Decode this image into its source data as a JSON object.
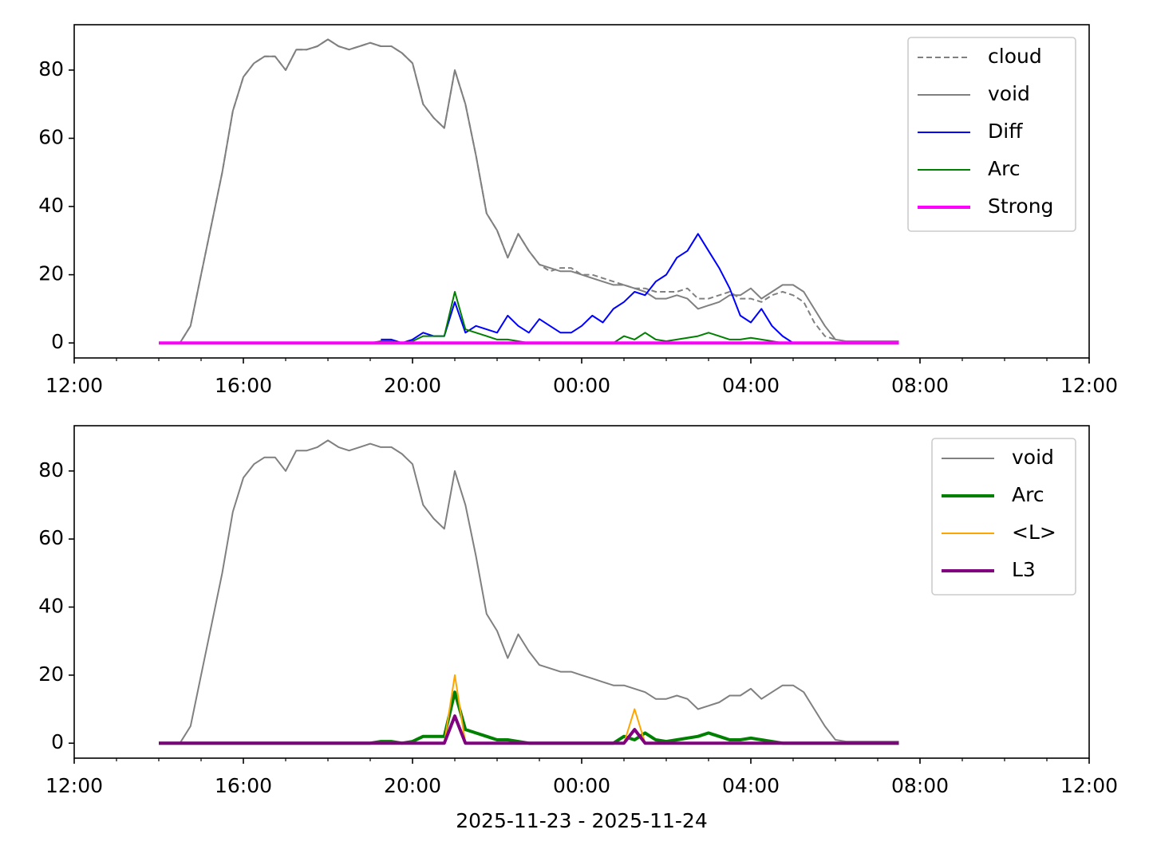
{
  "chart_data": [
    {
      "type": "line",
      "x": [
        14,
        14.25,
        14.5,
        14.75,
        15,
        15.25,
        15.5,
        15.75,
        16,
        16.25,
        16.5,
        16.75,
        17,
        17.25,
        17.5,
        17.75,
        18,
        18.25,
        18.5,
        18.75,
        19,
        19.25,
        19.5,
        19.75,
        20,
        20.25,
        20.5,
        20.75,
        21,
        21.25,
        21.5,
        21.75,
        22,
        22.25,
        22.5,
        22.75,
        23,
        23.25,
        23.5,
        23.75,
        24,
        24.25,
        24.5,
        24.75,
        25,
        25.25,
        25.5,
        25.75,
        26,
        26.25,
        26.5,
        26.75,
        27,
        27.25,
        27.5,
        27.75,
        28,
        28.25,
        28.5,
        28.75,
        29,
        29.25,
        29.5,
        29.75,
        30,
        30.25,
        30.5,
        30.75,
        31,
        31.25,
        31.5
      ],
      "series": [
        {
          "name": "cloud",
          "color": "#808080",
          "dashed": true,
          "width": 2,
          "values": [
            0,
            0,
            0,
            5,
            20,
            35,
            50,
            68,
            78,
            82,
            84,
            84,
            80,
            86,
            86,
            87,
            89,
            87,
            86,
            87,
            88,
            87,
            87,
            85,
            82,
            70,
            66,
            63,
            80,
            70,
            55,
            38,
            33,
            25,
            32,
            27,
            23,
            21,
            22,
            22,
            20,
            20,
            19,
            18,
            17,
            16,
            16,
            15,
            15,
            15,
            16,
            13,
            13,
            14,
            15,
            13,
            13,
            12,
            14,
            15,
            14,
            12,
            6,
            2,
            1,
            0.5,
            0.5,
            0.5,
            0.5,
            0.5,
            0.5
          ]
        },
        {
          "name": "void",
          "color": "#808080",
          "width": 2,
          "values": [
            0,
            0,
            0,
            5,
            20,
            35,
            50,
            68,
            78,
            82,
            84,
            84,
            80,
            86,
            86,
            87,
            89,
            87,
            86,
            87,
            88,
            87,
            87,
            85,
            82,
            70,
            66,
            63,
            80,
            70,
            55,
            38,
            33,
            25,
            32,
            27,
            23,
            22,
            21,
            21,
            20,
            19,
            18,
            17,
            17,
            16,
            15,
            13,
            13,
            14,
            13,
            10,
            11,
            12,
            14,
            14,
            16,
            13,
            15,
            17,
            17,
            15,
            10,
            5,
            1,
            0.5,
            0.5,
            0.5,
            0.5,
            0.5,
            0.5
          ]
        },
        {
          "name": "Diff",
          "color": "#0000ff",
          "width": 2,
          "values": [
            null,
            null,
            null,
            null,
            null,
            null,
            null,
            null,
            null,
            null,
            null,
            null,
            null,
            null,
            null,
            null,
            null,
            null,
            null,
            null,
            null,
            1,
            1,
            0,
            1,
            3,
            2,
            2,
            12,
            3,
            5,
            4,
            3,
            8,
            5,
            3,
            7,
            5,
            3,
            3,
            5,
            8,
            6,
            10,
            12,
            15,
            14,
            18,
            20,
            25,
            27,
            32,
            27,
            22,
            16,
            8,
            6,
            10,
            5,
            2,
            0,
            null,
            null,
            null,
            null,
            null,
            null,
            null,
            null,
            null,
            null
          ]
        },
        {
          "name": "Arc",
          "color": "#008000",
          "width": 2,
          "values": [
            0,
            0,
            0,
            0,
            0,
            0,
            0,
            0,
            0,
            0,
            0,
            0,
            0,
            0,
            0,
            0,
            0,
            0,
            0,
            0,
            0,
            0.5,
            0.5,
            0,
            0.5,
            2,
            2,
            2,
            15,
            4,
            3,
            2,
            1,
            1,
            0.5,
            0,
            0,
            0,
            0,
            0,
            0,
            0,
            0,
            0,
            2,
            1,
            3,
            1,
            0.5,
            1,
            1.5,
            2,
            3,
            2,
            1,
            1,
            1.5,
            1,
            0.5,
            0,
            0,
            0,
            0,
            0,
            0,
            0,
            0,
            0,
            0,
            0,
            0
          ]
        },
        {
          "name": "Strong",
          "color": "#ff00ff",
          "width": 4,
          "values": [
            0,
            0,
            0,
            0,
            0,
            0,
            0,
            0,
            0,
            0,
            0,
            0,
            0,
            0,
            0,
            0,
            0,
            0,
            0,
            0,
            0,
            0,
            0,
            0,
            0,
            0,
            0,
            0,
            0,
            0,
            0,
            0,
            0,
            0,
            0,
            0,
            0,
            0,
            0,
            0,
            0,
            0,
            0,
            0,
            0,
            0,
            0,
            0,
            0,
            0,
            0,
            0,
            0,
            0,
            0,
            0,
            0,
            0,
            0,
            0,
            0,
            0,
            0,
            0,
            0,
            0,
            0,
            0,
            0,
            0,
            0
          ]
        }
      ],
      "xlim": [
        12,
        36
      ],
      "xticks": [
        {
          "value": 12,
          "label": "12:00"
        },
        {
          "value": 16,
          "label": "16:00"
        },
        {
          "value": 20,
          "label": "20:00"
        },
        {
          "value": 24,
          "label": "00:00"
        },
        {
          "value": 28,
          "label": "04:00"
        },
        {
          "value": 32,
          "label": "08:00"
        },
        {
          "value": 36,
          "label": "12:00"
        }
      ],
      "ylim": [
        -4.4,
        93.3
      ],
      "yticks": [
        0,
        20,
        40,
        60,
        80
      ],
      "legend": "upper right"
    },
    {
      "type": "line",
      "x": [
        14,
        14.25,
        14.5,
        14.75,
        15,
        15.25,
        15.5,
        15.75,
        16,
        16.25,
        16.5,
        16.75,
        17,
        17.25,
        17.5,
        17.75,
        18,
        18.25,
        18.5,
        18.75,
        19,
        19.25,
        19.5,
        19.75,
        20,
        20.25,
        20.5,
        20.75,
        21,
        21.25,
        21.5,
        21.75,
        22,
        22.25,
        22.5,
        22.75,
        23,
        23.25,
        23.5,
        23.75,
        24,
        24.25,
        24.5,
        24.75,
        25,
        25.25,
        25.5,
        25.75,
        26,
        26.25,
        26.5,
        26.75,
        27,
        27.25,
        27.5,
        27.75,
        28,
        28.25,
        28.5,
        28.75,
        29,
        29.25,
        29.5,
        29.75,
        30,
        30.25,
        30.5,
        30.75,
        31,
        31.25,
        31.5
      ],
      "series": [
        {
          "name": "void",
          "color": "#808080",
          "width": 2,
          "values": [
            0,
            0,
            0,
            5,
            20,
            35,
            50,
            68,
            78,
            82,
            84,
            84,
            80,
            86,
            86,
            87,
            89,
            87,
            86,
            87,
            88,
            87,
            87,
            85,
            82,
            70,
            66,
            63,
            80,
            70,
            55,
            38,
            33,
            25,
            32,
            27,
            23,
            22,
            21,
            21,
            20,
            19,
            18,
            17,
            17,
            16,
            15,
            13,
            13,
            14,
            13,
            10,
            11,
            12,
            14,
            14,
            16,
            13,
            15,
            17,
            17,
            15,
            10,
            5,
            1,
            0.5,
            0.5,
            0.5,
            0.5,
            0.5,
            0.5
          ]
        },
        {
          "name": "Arc",
          "color": "#008000",
          "width": 4,
          "values": [
            0,
            0,
            0,
            0,
            0,
            0,
            0,
            0,
            0,
            0,
            0,
            0,
            0,
            0,
            0,
            0,
            0,
            0,
            0,
            0,
            0,
            0.5,
            0.5,
            0,
            0.5,
            2,
            2,
            2,
            15,
            4,
            3,
            2,
            1,
            1,
            0.5,
            0,
            0,
            0,
            0,
            0,
            0,
            0,
            0,
            0,
            2,
            1,
            3,
            1,
            0.5,
            1,
            1.5,
            2,
            3,
            2,
            1,
            1,
            1.5,
            1,
            0.5,
            0,
            0,
            0,
            0,
            0,
            0,
            0,
            0,
            0,
            0,
            0,
            0
          ]
        },
        {
          "name": "<L>",
          "color": "#ffa500",
          "width": 2,
          "values": [
            0,
            0,
            0,
            0,
            0,
            0,
            0,
            0,
            0,
            0,
            0,
            0,
            0,
            0,
            0,
            0,
            0,
            0,
            0,
            0,
            0,
            0,
            0,
            0,
            0,
            0,
            0,
            0,
            20,
            0,
            0,
            0,
            0,
            0,
            0,
            0,
            0,
            0,
            0,
            0,
            0,
            0,
            0,
            0,
            0,
            10,
            0,
            0,
            0,
            0,
            0,
            0,
            0,
            0,
            0,
            0,
            0,
            0,
            0,
            0,
            0,
            0,
            0,
            0,
            0,
            0,
            0,
            0,
            0,
            0,
            0
          ]
        },
        {
          "name": "L3",
          "color": "#800080",
          "width": 4,
          "values": [
            0,
            0,
            0,
            0,
            0,
            0,
            0,
            0,
            0,
            0,
            0,
            0,
            0,
            0,
            0,
            0,
            0,
            0,
            0,
            0,
            0,
            0,
            0,
            0,
            0,
            0,
            0,
            0,
            8,
            0,
            0,
            0,
            0,
            0,
            0,
            0,
            0,
            0,
            0,
            0,
            0,
            0,
            0,
            0,
            0,
            4,
            0,
            0,
            0,
            0,
            0,
            0,
            0,
            0,
            0,
            0,
            0,
            0,
            0,
            0,
            0,
            0,
            0,
            0,
            0,
            0,
            0,
            0,
            0,
            0,
            0
          ]
        }
      ],
      "xlim": [
        12,
        36
      ],
      "xticks": [
        {
          "value": 12,
          "label": "12:00"
        },
        {
          "value": 16,
          "label": "16:00"
        },
        {
          "value": 20,
          "label": "20:00"
        },
        {
          "value": 24,
          "label": "00:00"
        },
        {
          "value": 28,
          "label": "04:00"
        },
        {
          "value": 32,
          "label": "08:00"
        },
        {
          "value": 36,
          "label": "12:00"
        }
      ],
      "ylim": [
        -4.4,
        93.3
      ],
      "yticks": [
        0,
        20,
        40,
        60,
        80
      ],
      "legend": "upper right",
      "x_label": "2025-11-23 - 2025-11-24"
    }
  ]
}
